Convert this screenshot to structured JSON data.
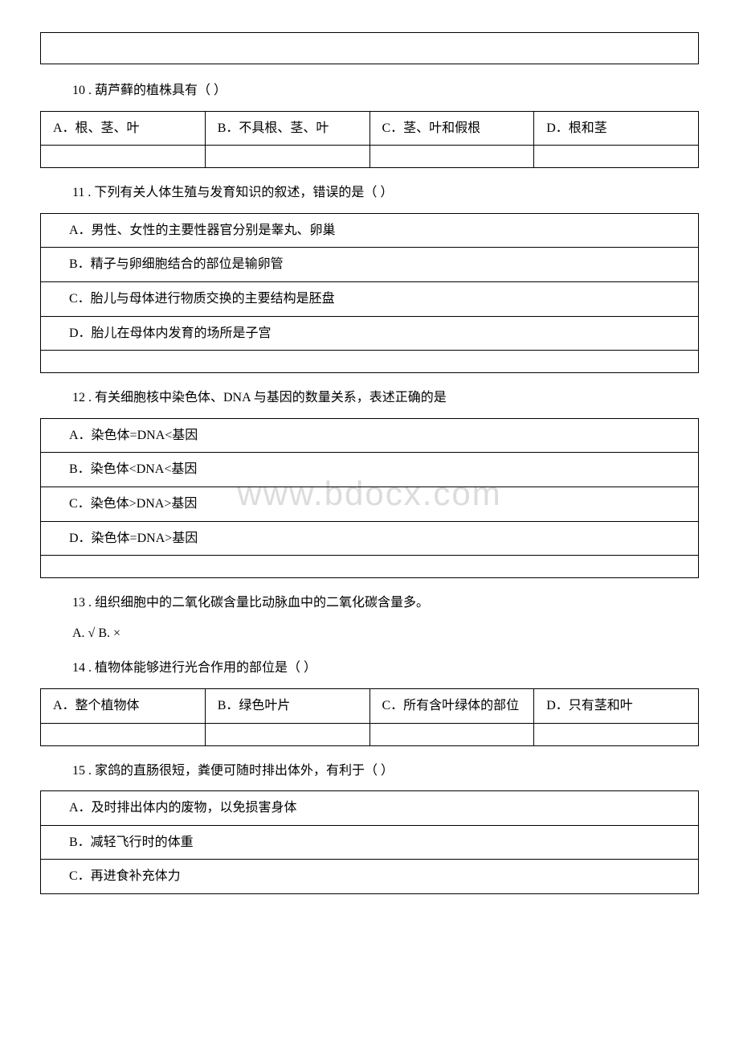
{
  "q10": {
    "text": "10 . 葫芦藓的植株具有（ ）",
    "options": {
      "a": "A．根、茎、叶",
      "b": "B．不具根、茎、叶",
      "c": "C．茎、叶和假根",
      "d": "D．根和茎"
    }
  },
  "q11": {
    "text": "11 . 下列有关人体生殖与发育知识的叙述，错误的是（ ）",
    "options": {
      "a": "A．男性、女性的主要性器官分别是睾丸、卵巢",
      "b": "B．精子与卵细胞结合的部位是输卵管",
      "c": "C．胎儿与母体进行物质交换的主要结构是胚盘",
      "d": "D．胎儿在母体内发育的场所是子宫"
    }
  },
  "q12": {
    "text": "12 . 有关细胞核中染色体、DNA 与基因的数量关系，表述正确的是",
    "options": {
      "a": "A．染色体=DNA<基因",
      "b": "B．染色体<DNA<基因",
      "c": "C．染色体>DNA>基因",
      "d": "D．染色体=DNA>基因"
    }
  },
  "q13": {
    "text": "13 . 组织细胞中的二氧化碳含量比动脉血中的二氧化碳含量多。",
    "answer": "A. √    B. ×"
  },
  "q14": {
    "text": "14 . 植物体能够进行光合作用的部位是（ ）",
    "options": {
      "a": "A．整个植物体",
      "b": "B．绿色叶片",
      "c": "C．所有含叶绿体的部位",
      "d": "D．只有茎和叶"
    }
  },
  "q15": {
    "text": "15 . 家鸽的直肠很短，粪便可随时排出体外，有利于（ ）",
    "options": {
      "a": "A．及时排出体内的废物，以免损害身体",
      "b": "B．减轻飞行时的体重",
      "c": "C．再进食补充体力"
    }
  },
  "watermark": "www.bdocx.com"
}
